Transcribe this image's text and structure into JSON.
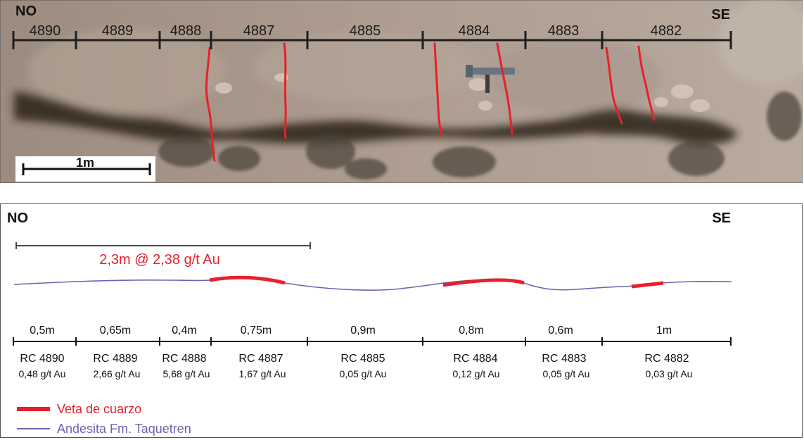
{
  "photo": {
    "dir_left": "NO",
    "dir_right": "SE",
    "scale_label": "1m",
    "sample_labels": [
      "4890",
      "4889",
      "4888",
      "4887",
      "4885",
      "4884",
      "4883",
      "4882"
    ],
    "colors": {
      "ground": "#a8978a",
      "shadow": "#2a2018",
      "vein": "#e8202a",
      "tape": "#1e1e1e"
    }
  },
  "profile": {
    "dir_left": "NO",
    "dir_right": "SE",
    "interval_label": "2,3m @ 2,38 g/t Au",
    "samples": [
      {
        "length": "0,5m",
        "id": "RC 4890",
        "grade": "0,48 g/t Au"
      },
      {
        "length": "0,65m",
        "id": "RC 4889",
        "grade": "2,66 g/t Au"
      },
      {
        "length": "0,4m",
        "id": "RC 4888",
        "grade": "5,68 g/t Au"
      },
      {
        "length": "0,75m",
        "id": "RC 4887",
        "grade": "1,67 g/t Au"
      },
      {
        "length": "0,9m",
        "id": "RC 4885",
        "grade": "0,05 g/t Au"
      },
      {
        "length": "0,8m",
        "id": "RC 4884",
        "grade": "0,12 g/t Au"
      },
      {
        "length": "0,6m",
        "id": "RC 4883",
        "grade": "0,05 g/t Au"
      },
      {
        "length": "1m",
        "id": "RC 4882",
        "grade": "0,03 g/t Au"
      }
    ],
    "legend": [
      {
        "label": "Veta de cuarzo",
        "color": "#e8202a",
        "kind": "vein"
      },
      {
        "label": "Andesita Fm. Taquetren",
        "color": "#6c63b5",
        "kind": "andesite"
      }
    ],
    "colors": {
      "vein": "#e8202a",
      "andesite": "#6c63b5",
      "text": "#111111",
      "interval": "#e8202a"
    }
  }
}
